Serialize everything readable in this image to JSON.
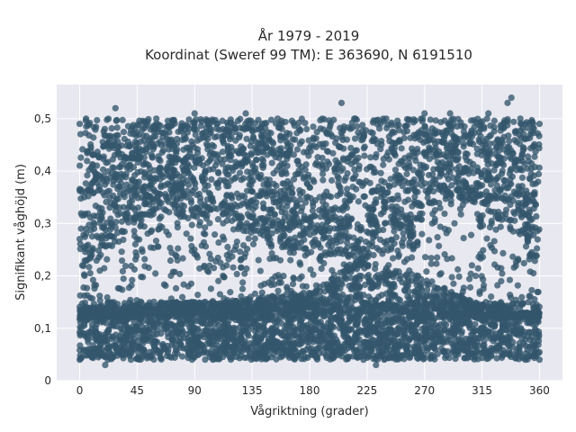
{
  "chart_data": {
    "type": "scatter",
    "title": [
      "År 1979 - 2019",
      "Koordinat (Sweref 99 TM): E 363690, N 6191510"
    ],
    "xlabel": "Vågriktning (grader)",
    "ylabel": "Signifikant våghöjd (m)",
    "xlim": [
      -18,
      378
    ],
    "ylim": [
      0,
      0.565
    ],
    "xticks": [
      0,
      45,
      90,
      135,
      180,
      225,
      270,
      315,
      360
    ],
    "xtick_labels": [
      "0",
      "45",
      "90",
      "135",
      "180",
      "225",
      "270",
      "315",
      "360"
    ],
    "yticks": [
      0,
      0.1,
      0.2,
      0.3,
      0.4,
      0.5
    ],
    "ytick_labels": [
      "0",
      "0,1",
      "0,2",
      "0,3",
      "0,4",
      "0,5"
    ],
    "grid": true,
    "legend": false,
    "marker_color": "#33566b",
    "plot_background": "#e8e8f0",
    "series": [
      {
        "points": [
          [
            0,
            0.04
          ],
          [
            0,
            0.49
          ],
          [
            2,
            0.22
          ],
          [
            5,
            0.5
          ],
          [
            10,
            0.14
          ],
          [
            15,
            0.33
          ],
          [
            20,
            0.03
          ],
          [
            28,
            0.52
          ],
          [
            40,
            0.45
          ],
          [
            45,
            0.27
          ],
          [
            60,
            0.5
          ],
          [
            75,
            0.24
          ],
          [
            85,
            0.18
          ],
          [
            90,
            0.51
          ],
          [
            100,
            0.21
          ],
          [
            115,
            0.22
          ],
          [
            126,
            0.23
          ],
          [
            130,
            0.51
          ],
          [
            135,
            0.29
          ],
          [
            140,
            0.23
          ],
          [
            150,
            0.26
          ],
          [
            155,
            0.5
          ],
          [
            165,
            0.23
          ],
          [
            170,
            0.31
          ],
          [
            180,
            0.29
          ],
          [
            185,
            0.14
          ],
          [
            190,
            0.5
          ],
          [
            200,
            0.33
          ],
          [
            205,
            0.53
          ],
          [
            210,
            0.11
          ],
          [
            215,
            0.5
          ],
          [
            225,
            0.24
          ],
          [
            232,
            0.03
          ],
          [
            240,
            0.5
          ],
          [
            250,
            0.24
          ],
          [
            258,
            0.21
          ],
          [
            265,
            0.2
          ],
          [
            270,
            0.51
          ],
          [
            276,
            0.3
          ],
          [
            285,
            0.12
          ],
          [
            290,
            0.51
          ],
          [
            300,
            0.17
          ],
          [
            310,
            0.2
          ],
          [
            318,
            0.15
          ],
          [
            320,
            0.51
          ],
          [
            330,
            0.19
          ],
          [
            335,
            0.53
          ],
          [
            338,
            0.54
          ],
          [
            345,
            0.5
          ],
          [
            350,
            0.13
          ],
          [
            355,
            0.49
          ],
          [
            360,
            0.04
          ],
          [
            360,
            0.49
          ]
        ],
        "envelope": {
          "low_band": [
            0.04,
            0.15
          ],
          "high_band_low_directions": [
            [
              0,
              0.2
            ],
            [
              20,
              0.25
            ],
            [
              60,
              0.32
            ],
            [
              125,
              0.3
            ],
            [
              150,
              0.26
            ],
            [
              200,
              0.22
            ],
            [
              235,
              0.24
            ],
            [
              260,
              0.26
            ],
            [
              272,
              0.33
            ],
            [
              300,
              0.34
            ],
            [
              340,
              0.3
            ],
            [
              360,
              0.2
            ]
          ],
          "middle_band_high": [
            [
              40,
              0.14
            ],
            [
              70,
              0.15
            ],
            [
              110,
              0.15
            ],
            [
              140,
              0.16
            ],
            [
              180,
              0.17
            ],
            [
              200,
              0.2
            ],
            [
              225,
              0.25
            ],
            [
              245,
              0.22
            ],
            [
              265,
              0.2
            ],
            [
              285,
              0.18
            ],
            [
              310,
              0.15
            ],
            [
              340,
              0.13
            ]
          ],
          "top": 0.5
        }
      }
    ]
  }
}
